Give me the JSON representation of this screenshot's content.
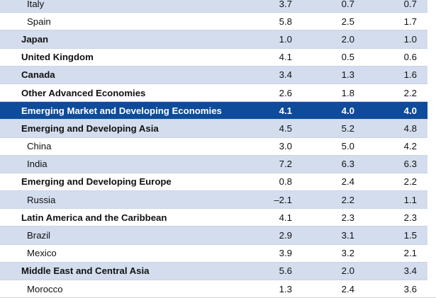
{
  "table": {
    "rows": [
      {
        "label": "Italy",
        "v1": "3.7",
        "v2": "0.7",
        "v3": "0.7",
        "style": "indent",
        "shade": true
      },
      {
        "label": "Spain",
        "v1": "5.8",
        "v2": "2.5",
        "v3": "1.7",
        "style": "indent",
        "shade": false
      },
      {
        "label": "Japan",
        "v1": "1.0",
        "v2": "2.0",
        "v3": "1.0",
        "style": "bold",
        "shade": true
      },
      {
        "label": "United Kingdom",
        "v1": "4.1",
        "v2": "0.5",
        "v3": "0.6",
        "style": "bold",
        "shade": false
      },
      {
        "label": "Canada",
        "v1": "3.4",
        "v2": "1.3",
        "v3": "1.6",
        "style": "bold",
        "shade": true
      },
      {
        "label": "Other Advanced Economies",
        "v1": "2.6",
        "v2": "1.8",
        "v3": "2.2",
        "style": "bold",
        "shade": false
      },
      {
        "label": "Emerging Market and Developing Economies",
        "v1": "4.1",
        "v2": "4.0",
        "v3": "4.0",
        "style": "highlight",
        "shade": false
      },
      {
        "label": "Emerging and Developing Asia",
        "v1": "4.5",
        "v2": "5.2",
        "v3": "4.8",
        "style": "bold",
        "shade": true
      },
      {
        "label": "China",
        "v1": "3.0",
        "v2": "5.0",
        "v3": "4.2",
        "style": "indent",
        "shade": false
      },
      {
        "label": "India",
        "v1": "7.2",
        "v2": "6.3",
        "v3": "6.3",
        "style": "indent",
        "shade": true
      },
      {
        "label": "Emerging and Developing Europe",
        "v1": "0.8",
        "v2": "2.4",
        "v3": "2.2",
        "style": "bold",
        "shade": false
      },
      {
        "label": "Russia",
        "v1": "–2.1",
        "v2": "2.2",
        "v3": "1.1",
        "style": "indent",
        "shade": true
      },
      {
        "label": "Latin America and the Caribbean",
        "v1": "4.1",
        "v2": "2.3",
        "v3": "2.3",
        "style": "bold",
        "shade": false
      },
      {
        "label": "Brazil",
        "v1": "2.9",
        "v2": "3.1",
        "v3": "1.5",
        "style": "indent",
        "shade": true
      },
      {
        "label": "Mexico",
        "v1": "3.9",
        "v2": "3.2",
        "v3": "2.1",
        "style": "indent",
        "shade": false
      },
      {
        "label": "Middle East and Central Asia",
        "v1": "5.6",
        "v2": "2.0",
        "v3": "3.4",
        "style": "bold",
        "shade": true
      },
      {
        "label": "Morocco",
        "v1": "1.3",
        "v2": "2.4",
        "v3": "3.6",
        "style": "indent",
        "shade": false
      }
    ]
  }
}
